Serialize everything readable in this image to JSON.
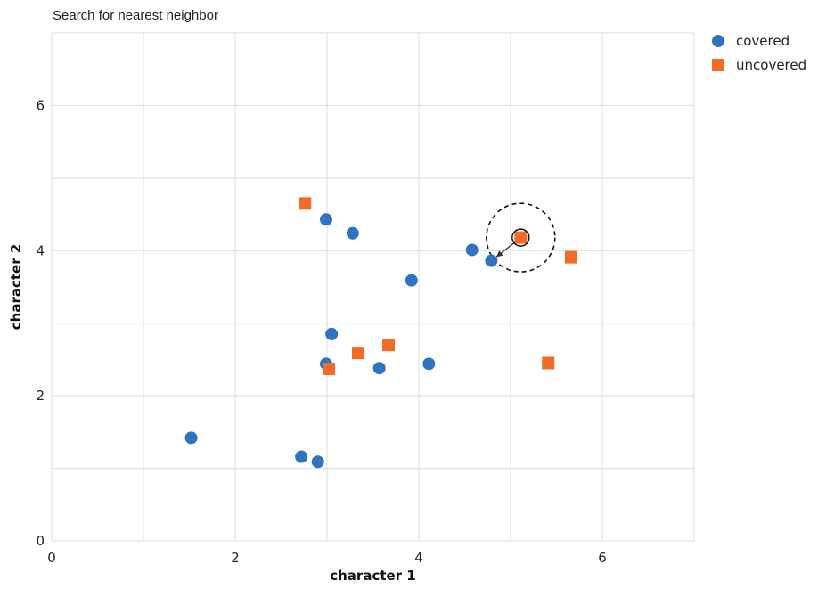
{
  "chart_data": {
    "type": "scatter",
    "title": "Search for nearest neighbor",
    "xlabel": "character 1",
    "ylabel": "character 2",
    "xlim": [
      0,
      7
    ],
    "ylim": [
      0,
      7
    ],
    "xticks": [
      0,
      2,
      4,
      6
    ],
    "yticks": [
      0,
      2,
      4,
      6
    ],
    "grid": true,
    "legend_position": "top-right",
    "series": [
      {
        "name": "covered",
        "marker": "circle",
        "color": "#2f74c0",
        "points": [
          [
            1.52,
            1.42
          ],
          [
            2.72,
            1.16
          ],
          [
            2.9,
            1.09
          ],
          [
            2.99,
            2.44
          ],
          [
            3.05,
            2.85
          ],
          [
            2.99,
            4.43
          ],
          [
            3.28,
            4.24
          ],
          [
            3.57,
            2.38
          ],
          [
            3.92,
            3.59
          ],
          [
            4.11,
            2.44
          ],
          [
            4.58,
            4.01
          ],
          [
            4.79,
            3.86
          ]
        ]
      },
      {
        "name": "uncovered",
        "marker": "square",
        "color": "#f26b27",
        "points": [
          [
            2.76,
            4.65
          ],
          [
            3.02,
            2.37
          ],
          [
            3.34,
            2.59
          ],
          [
            3.67,
            2.7
          ],
          [
            5.41,
            2.45
          ],
          [
            5.66,
            3.91
          ],
          [
            5.11,
            4.18
          ]
        ]
      }
    ],
    "highlight": {
      "query_point": [
        5.11,
        4.18
      ],
      "neighbor_point": [
        4.79,
        3.86
      ],
      "search_radius": 0.45
    }
  }
}
